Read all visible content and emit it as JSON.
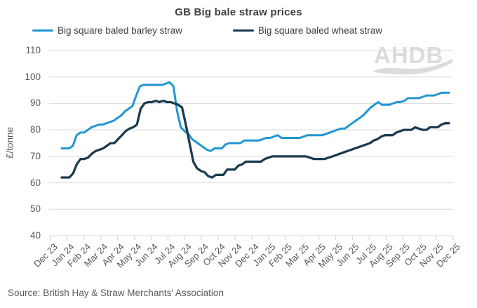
{
  "title": "GB Big bale straw prices",
  "watermark": "AHDB",
  "source": "Source: British Hay & Straw Merchants' Association",
  "colors": {
    "barley": "#2196d3",
    "wheat": "#1b3c4e",
    "grid": "#d9d9d9",
    "axis_text": "#595959",
    "watermark": "#dcdcdc"
  },
  "legend": [
    {
      "label": "Big square baled barley straw",
      "color": "#2196d3"
    },
    {
      "label": "Big square baled wheat straw",
      "color": "#1b3c4e"
    }
  ],
  "chart_data": {
    "type": "line",
    "title": "GB Big bale straw prices",
    "xlabel": "",
    "ylabel": "£/tonne",
    "ylim": [
      40,
      110
    ],
    "y_ticks": [
      40,
      50,
      60,
      70,
      80,
      90,
      100,
      110
    ],
    "grid": "horizontal",
    "legend_position": "top",
    "x_unit": "weekly (Dec 2023 - Dec 2025)",
    "x_tick_labels": [
      "Dec 23",
      "Jan 24",
      "Feb 24",
      "Mar 24",
      "Apr 24",
      "May 24",
      "Jun 24",
      "Jul 24",
      "Aug 24",
      "Sep 24",
      "Oct 24",
      "Nov 24",
      "Dec 24",
      "Jan 25",
      "Feb 25",
      "Mar 25",
      "Apr 25",
      "May 25",
      "Jun 25",
      "Jul 25",
      "Aug 25",
      "Sep 25",
      "Oct 25",
      "Nov 25",
      "Dec 25"
    ],
    "series": [
      {
        "name": "Big square baled barley straw",
        "color": "#2196d3",
        "values": [
          73,
          73,
          73,
          74,
          78,
          79,
          79,
          80,
          81,
          81.5,
          82,
          82,
          82.5,
          83,
          83.5,
          84.5,
          85.5,
          87,
          88,
          89,
          93,
          96.5,
          97,
          97,
          97,
          97,
          97,
          97,
          97.5,
          98,
          96.5,
          87,
          81,
          79.5,
          78.5,
          76.5,
          75.5,
          74.5,
          73.5,
          72.5,
          72,
          73,
          73,
          73,
          74.5,
          75,
          75,
          75,
          75,
          76,
          76,
          76,
          76,
          76,
          76.5,
          77,
          77,
          77.5,
          78,
          77,
          77,
          77,
          77,
          77,
          77,
          77.5,
          78,
          78,
          78,
          78,
          78,
          78.5,
          79,
          79.5,
          80,
          80.5,
          80.5,
          81.5,
          82.5,
          83.5,
          84.5,
          85.5,
          87,
          88.5,
          89.5,
          90.5,
          89.5,
          89.5,
          89.5,
          90,
          90.5,
          90.5,
          91,
          92,
          92,
          92,
          92,
          92.5,
          93,
          93,
          93,
          93.5,
          94,
          94,
          94
        ]
      },
      {
        "name": "Big square baled wheat straw",
        "color": "#1b3c4e",
        "values": [
          62,
          62,
          62,
          63.5,
          67,
          69,
          69,
          69.5,
          71,
          72,
          72.5,
          73,
          74,
          75,
          75,
          76.5,
          78,
          79.5,
          80.5,
          81,
          82,
          88,
          90,
          90.5,
          90.5,
          91,
          90.5,
          91,
          90.5,
          90.5,
          90,
          89.5,
          88.5,
          82,
          75,
          68,
          65.5,
          64.5,
          64,
          62.5,
          62,
          63,
          63,
          63,
          65,
          65,
          65,
          66.5,
          67,
          68,
          68,
          68,
          68,
          68,
          69,
          69.5,
          70,
          70,
          70,
          70,
          70,
          70,
          70,
          70,
          70,
          70,
          69.5,
          69,
          69,
          69,
          69,
          69.5,
          70,
          70.5,
          71,
          71.5,
          72,
          72.5,
          73,
          73.5,
          74,
          74.5,
          75,
          76,
          76.5,
          77.5,
          78,
          78,
          78,
          79,
          79.5,
          80,
          80,
          80,
          81,
          80.5,
          80,
          80,
          81,
          81,
          81,
          82,
          82.5,
          82.5
        ]
      }
    ]
  }
}
